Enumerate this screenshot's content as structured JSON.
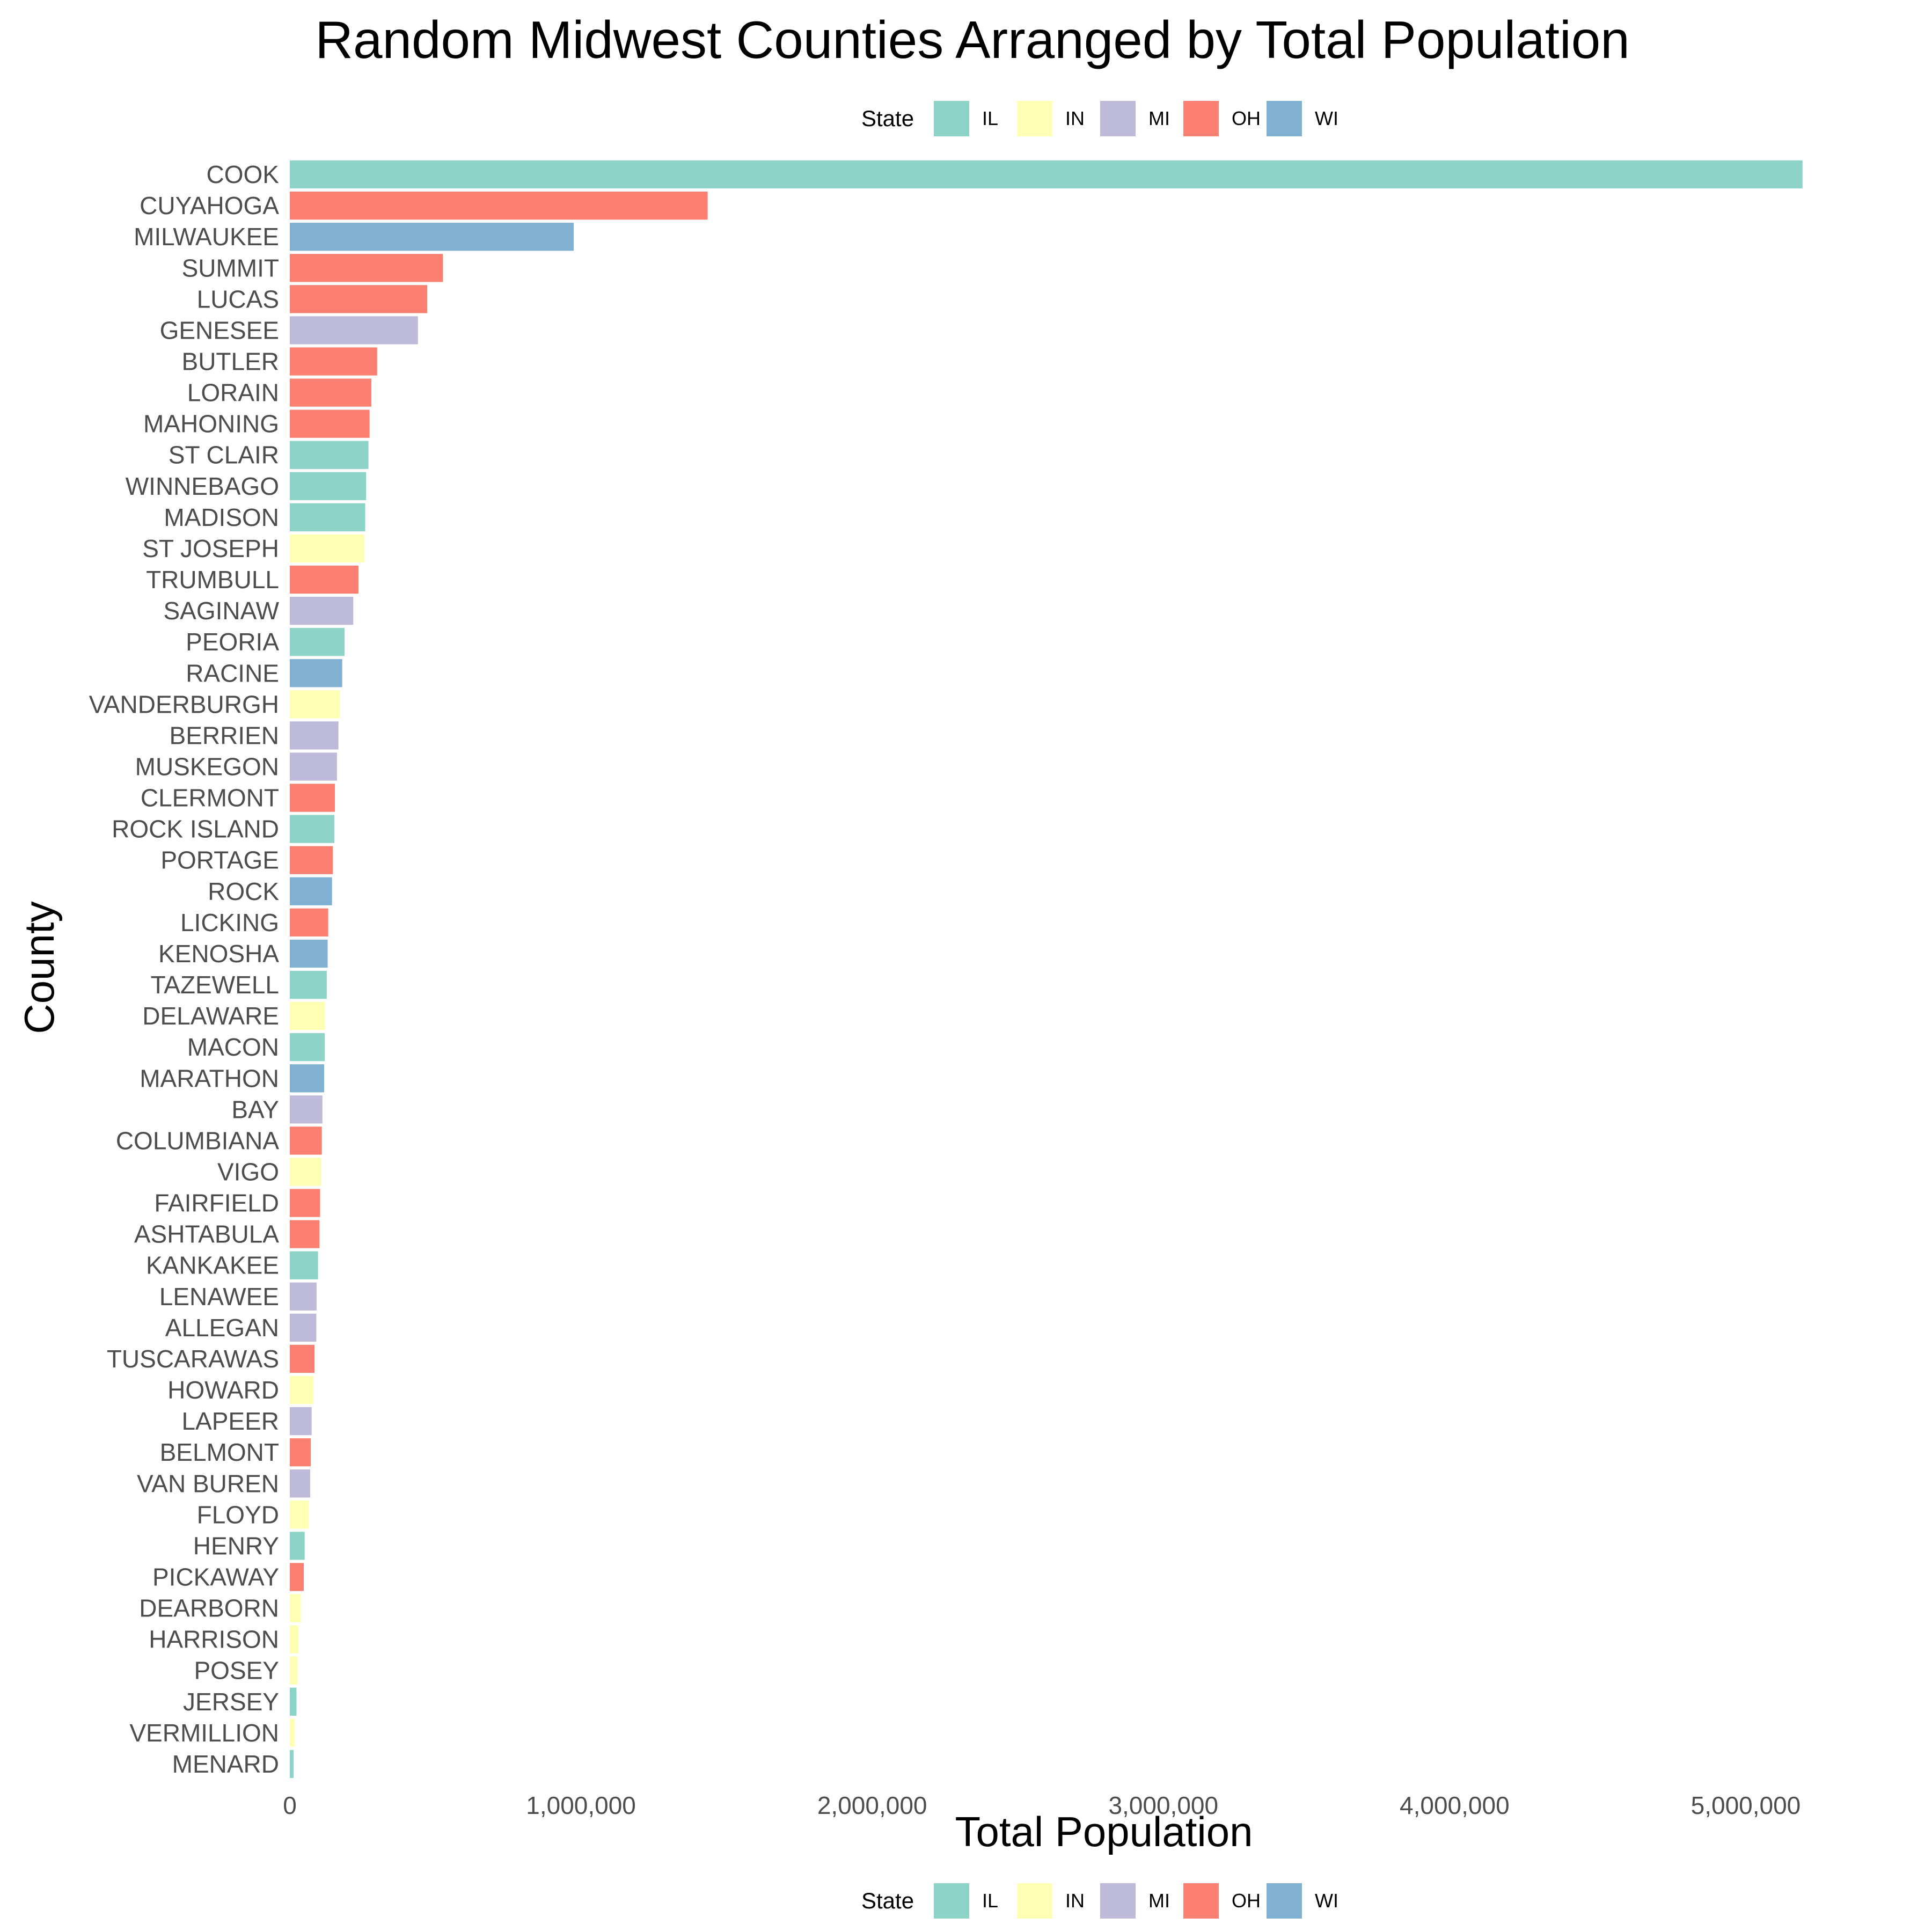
{
  "chart_data": {
    "type": "bar",
    "orientation": "horizontal",
    "title": "Random Midwest Counties Arranged by Total Population",
    "xlabel": "Total Population",
    "ylabel": "County",
    "xlim": [
      0,
      5400000
    ],
    "x_ticks": [
      0,
      1000000,
      2000000,
      3000000,
      4000000,
      5000000
    ],
    "x_tick_labels": [
      "0",
      "1,000,000",
      "2,000,000",
      "3,000,000",
      "4,000,000",
      "5,000,000"
    ],
    "grid": false,
    "legend": {
      "title": "State",
      "placement": "top and bottom",
      "entries": [
        {
          "label": "IL",
          "color": "#8DD3C7"
        },
        {
          "label": "IN",
          "color": "#FFFFB3"
        },
        {
          "label": "MI",
          "color": "#BEBADA"
        },
        {
          "label": "OH",
          "color": "#FB8072"
        },
        {
          "label": "WI",
          "color": "#80B1D3"
        }
      ]
    },
    "bars": [
      {
        "county": "COOK",
        "state": "IL",
        "value": 5195000
      },
      {
        "county": "CUYAHOGA",
        "state": "OH",
        "value": 1435000
      },
      {
        "county": "MILWAUKEE",
        "state": "WI",
        "value": 975000
      },
      {
        "county": "SUMMIT",
        "state": "OH",
        "value": 526000
      },
      {
        "county": "LUCAS",
        "state": "OH",
        "value": 472000
      },
      {
        "county": "GENESEE",
        "state": "MI",
        "value": 440000
      },
      {
        "county": "BUTLER",
        "state": "OH",
        "value": 300000
      },
      {
        "county": "LORAIN",
        "state": "OH",
        "value": 280000
      },
      {
        "county": "MAHONING",
        "state": "OH",
        "value": 274000
      },
      {
        "county": "ST CLAIR",
        "state": "IL",
        "value": 270000
      },
      {
        "county": "WINNEBAGO",
        "state": "IL",
        "value": 262000
      },
      {
        "county": "MADISON",
        "state": "IL",
        "value": 259000
      },
      {
        "county": "ST JOSEPH",
        "state": "IN",
        "value": 256000
      },
      {
        "county": "TRUMBULL",
        "state": "OH",
        "value": 236000
      },
      {
        "county": "SAGINAW",
        "state": "MI",
        "value": 218000
      },
      {
        "county": "PEORIA",
        "state": "IL",
        "value": 188000
      },
      {
        "county": "RACINE",
        "state": "WI",
        "value": 180000
      },
      {
        "county": "VANDERBURGH",
        "state": "IN",
        "value": 172000
      },
      {
        "county": "BERRIEN",
        "state": "MI",
        "value": 167000
      },
      {
        "county": "MUSKEGON",
        "state": "MI",
        "value": 162000
      },
      {
        "county": "CLERMONT",
        "state": "OH",
        "value": 155000
      },
      {
        "county": "ROCK ISLAND",
        "state": "IL",
        "value": 153000
      },
      {
        "county": "PORTAGE",
        "state": "OH",
        "value": 148000
      },
      {
        "county": "ROCK",
        "state": "WI",
        "value": 145000
      },
      {
        "county": "LICKING",
        "state": "OH",
        "value": 132000
      },
      {
        "county": "KENOSHA",
        "state": "WI",
        "value": 130000
      },
      {
        "county": "TAZEWELL",
        "state": "IL",
        "value": 127000
      },
      {
        "county": "DELAWARE",
        "state": "IN",
        "value": 121000
      },
      {
        "county": "MACON",
        "state": "IL",
        "value": 120000
      },
      {
        "county": "MARATHON",
        "state": "WI",
        "value": 118000
      },
      {
        "county": "BAY",
        "state": "MI",
        "value": 112000
      },
      {
        "county": "COLUMBIANA",
        "state": "OH",
        "value": 110000
      },
      {
        "county": "VIGO",
        "state": "IN",
        "value": 108000
      },
      {
        "county": "FAIRFIELD",
        "state": "OH",
        "value": 104000
      },
      {
        "county": "ASHTABULA",
        "state": "OH",
        "value": 102000
      },
      {
        "county": "KANKAKEE",
        "state": "IL",
        "value": 97000
      },
      {
        "county": "LENAWEE",
        "state": "MI",
        "value": 92000
      },
      {
        "county": "ALLEGAN",
        "state": "MI",
        "value": 91000
      },
      {
        "county": "TUSCARAWAS",
        "state": "OH",
        "value": 85000
      },
      {
        "county": "HOWARD",
        "state": "IN",
        "value": 81000
      },
      {
        "county": "LAPEER",
        "state": "MI",
        "value": 75000
      },
      {
        "county": "BELMONT",
        "state": "OH",
        "value": 72000
      },
      {
        "county": "VAN BUREN",
        "state": "MI",
        "value": 70000
      },
      {
        "county": "FLOYD",
        "state": "IN",
        "value": 65000
      },
      {
        "county": "HENRY",
        "state": "IL",
        "value": 51000
      },
      {
        "county": "PICKAWAY",
        "state": "OH",
        "value": 48000
      },
      {
        "county": "DEARBORN",
        "state": "IN",
        "value": 38000
      },
      {
        "county": "HARRISON",
        "state": "IN",
        "value": 30000
      },
      {
        "county": "POSEY",
        "state": "IN",
        "value": 27000
      },
      {
        "county": "JERSEY",
        "state": "IL",
        "value": 23000
      },
      {
        "county": "VERMILLION",
        "state": "IN",
        "value": 17000
      },
      {
        "county": "MENARD",
        "state": "IL",
        "value": 13000
      }
    ]
  }
}
